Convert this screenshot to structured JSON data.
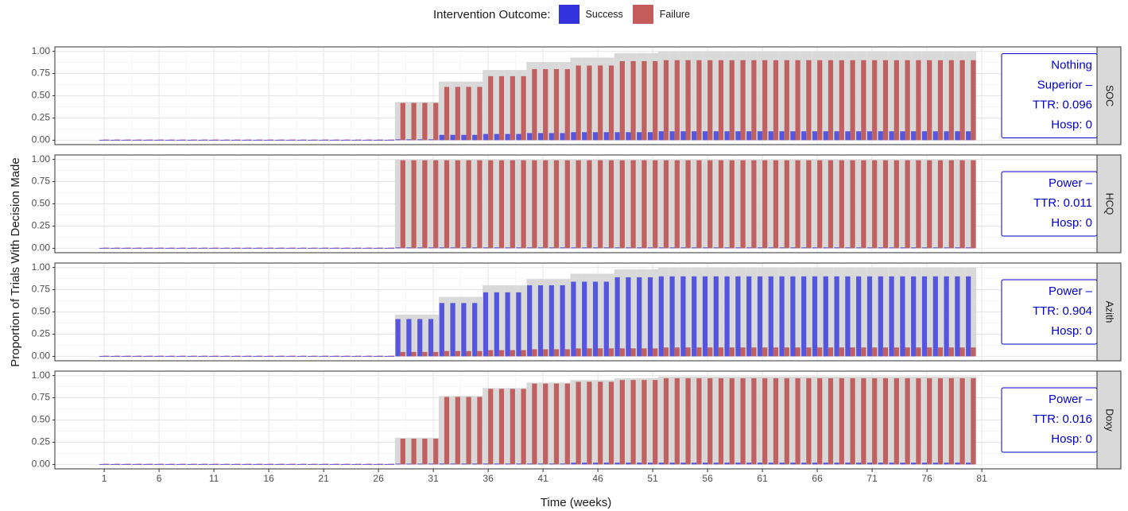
{
  "legend": {
    "title": "Intervention Outcome:",
    "items": [
      {
        "label": "Success",
        "color": "#3333dd"
      },
      {
        "label": "Failure",
        "color": "#c45c5c"
      }
    ]
  },
  "chart_data": {
    "type": "bar",
    "xlabel": "Time (weeks)",
    "ylabel": "Proportion of Trials With Decision Made",
    "x_ticks": [
      1,
      6,
      11,
      16,
      21,
      26,
      31,
      36,
      41,
      46,
      51,
      56,
      61,
      66,
      71,
      76,
      81
    ],
    "y_ticks": [
      "0.00",
      "0.25",
      "0.50",
      "0.75",
      "1.00"
    ],
    "xlim": [
      -3.5,
      91.5
    ],
    "ylim": [
      -0.05,
      1.05
    ],
    "colors": {
      "success": "#5555dd",
      "failure": "#c06060",
      "total": "#d9d9d9"
    },
    "panels": [
      {
        "strip": "SOC",
        "annotation": [
          "Nothing",
          "Superior –",
          "TTR: 0.096",
          "Hosp: 0"
        ],
        "steps": [
          {
            "from": 28,
            "total": 0.43,
            "success": 0.01,
            "failure": 0.42
          },
          {
            "from": 32,
            "total": 0.66,
            "success": 0.06,
            "failure": 0.6
          },
          {
            "from": 36,
            "total": 0.79,
            "success": 0.07,
            "failure": 0.72
          },
          {
            "from": 40,
            "total": 0.88,
            "success": 0.08,
            "failure": 0.8
          },
          {
            "from": 44,
            "total": 0.93,
            "success": 0.09,
            "failure": 0.84
          },
          {
            "from": 48,
            "total": 0.98,
            "success": 0.09,
            "failure": 0.89
          },
          {
            "from": 52,
            "total": 1.0,
            "success": 0.1,
            "failure": 0.9
          }
        ]
      },
      {
        "strip": "HCQ",
        "annotation": [
          "Power –",
          "TTR: 0.011",
          "Hosp: 0"
        ],
        "steps": [
          {
            "from": 28,
            "total": 1.0,
            "success": 0.01,
            "failure": 0.99
          }
        ]
      },
      {
        "strip": "Azith",
        "annotation": [
          "Power –",
          "TTR: 0.904",
          "Hosp: 0"
        ],
        "steps": [
          {
            "from": 28,
            "total": 0.47,
            "success": 0.42,
            "failure": 0.05
          },
          {
            "from": 32,
            "total": 0.67,
            "success": 0.6,
            "failure": 0.06
          },
          {
            "from": 36,
            "total": 0.8,
            "success": 0.72,
            "failure": 0.07
          },
          {
            "from": 40,
            "total": 0.87,
            "success": 0.8,
            "failure": 0.08
          },
          {
            "from": 44,
            "total": 0.93,
            "success": 0.84,
            "failure": 0.09
          },
          {
            "from": 48,
            "total": 0.98,
            "success": 0.89,
            "failure": 0.09
          },
          {
            "from": 52,
            "total": 1.0,
            "success": 0.9,
            "failure": 0.1
          }
        ]
      },
      {
        "strip": "Doxy",
        "annotation": [
          "Power –",
          "TTR: 0.016",
          "Hosp: 0"
        ],
        "steps": [
          {
            "from": 28,
            "total": 0.3,
            "success": 0.0,
            "failure": 0.29
          },
          {
            "from": 32,
            "total": 0.77,
            "success": 0.01,
            "failure": 0.76
          },
          {
            "from": 36,
            "total": 0.86,
            "success": 0.01,
            "failure": 0.85
          },
          {
            "from": 40,
            "total": 0.92,
            "success": 0.01,
            "failure": 0.91
          },
          {
            "from": 44,
            "total": 0.95,
            "success": 0.02,
            "failure": 0.93
          },
          {
            "from": 48,
            "total": 0.97,
            "success": 0.02,
            "failure": 0.95
          },
          {
            "from": 52,
            "total": 0.99,
            "success": 0.02,
            "failure": 0.97
          }
        ]
      }
    ],
    "first_week": 1,
    "last_week": 80,
    "grid": true
  }
}
